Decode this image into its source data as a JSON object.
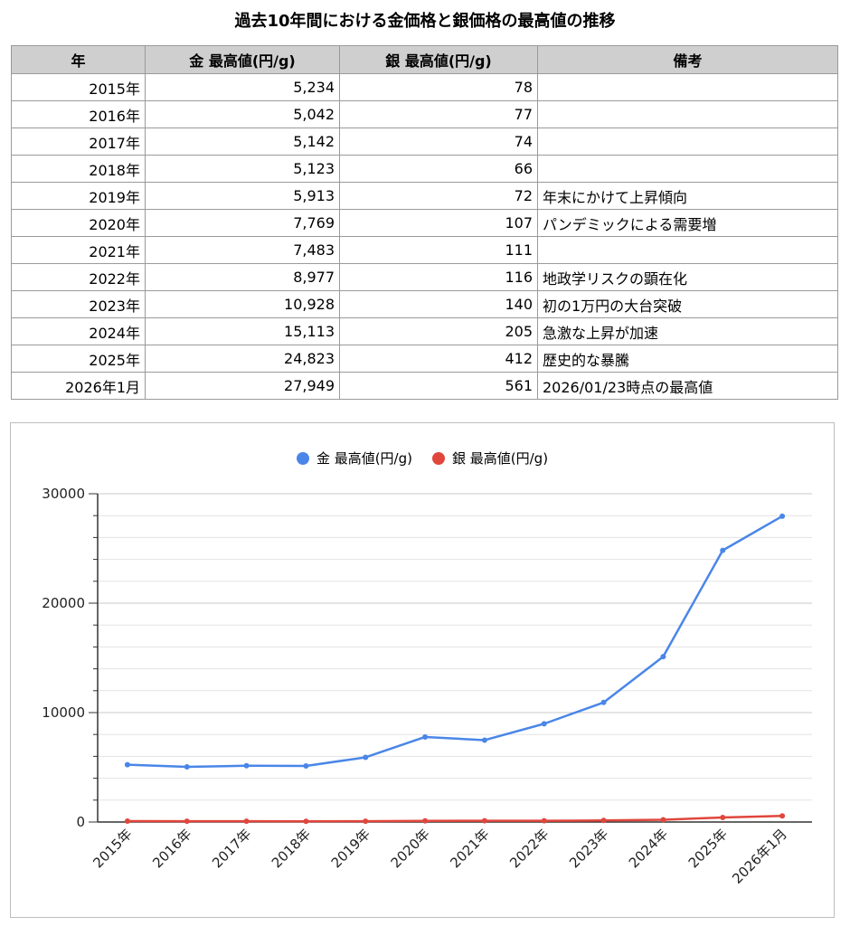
{
  "title": "過去10年間における金価格と銀価格の最高値の推移",
  "table": {
    "headers": [
      "年",
      "金 最高値(円/g)",
      "銀 最高値(円/g)",
      "備考"
    ],
    "rows": [
      {
        "year": "2015年",
        "gold": "5,234",
        "silver": "78",
        "note": ""
      },
      {
        "year": "2016年",
        "gold": "5,042",
        "silver": "77",
        "note": ""
      },
      {
        "year": "2017年",
        "gold": "5,142",
        "silver": "74",
        "note": ""
      },
      {
        "year": "2018年",
        "gold": "5,123",
        "silver": "66",
        "note": ""
      },
      {
        "year": "2019年",
        "gold": "5,913",
        "silver": "72",
        "note": "年末にかけて上昇傾向"
      },
      {
        "year": "2020年",
        "gold": "7,769",
        "silver": "107",
        "note": "パンデミックによる需要増"
      },
      {
        "year": "2021年",
        "gold": "7,483",
        "silver": "111",
        "note": ""
      },
      {
        "year": "2022年",
        "gold": "8,977",
        "silver": "116",
        "note": "地政学リスクの顕在化"
      },
      {
        "year": "2023年",
        "gold": "10,928",
        "silver": "140",
        "note": "初の1万円の大台突破"
      },
      {
        "year": "2024年",
        "gold": "15,113",
        "silver": "205",
        "note": "急激な上昇が加速"
      },
      {
        "year": "2025年",
        "gold": "24,823",
        "silver": "412",
        "note": "歴史的な暴騰"
      },
      {
        "year": "2026年1月",
        "gold": "27,949",
        "silver": "561",
        "note": "2026/01/23時点の最高値"
      }
    ]
  },
  "chart_data": {
    "type": "line",
    "categories": [
      "2015年",
      "2016年",
      "2017年",
      "2018年",
      "2019年",
      "2020年",
      "2021年",
      "2022年",
      "2023年",
      "2024年",
      "2025年",
      "2026年1月"
    ],
    "series": [
      {
        "name": "金 最高値(円/g)",
        "color": "#4a86e8",
        "values": [
          5234,
          5042,
          5142,
          5123,
          5913,
          7769,
          7483,
          8977,
          10928,
          15113,
          24823,
          27949
        ]
      },
      {
        "name": "銀 最高値(円/g)",
        "color": "#e0463c",
        "values": [
          78,
          77,
          74,
          66,
          72,
          107,
          111,
          116,
          140,
          205,
          412,
          561
        ]
      }
    ],
    "ylim": [
      0,
      30000
    ],
    "yticks": [
      "0",
      "10000",
      "20000",
      "30000"
    ],
    "grid": true,
    "legend_position": "top"
  }
}
